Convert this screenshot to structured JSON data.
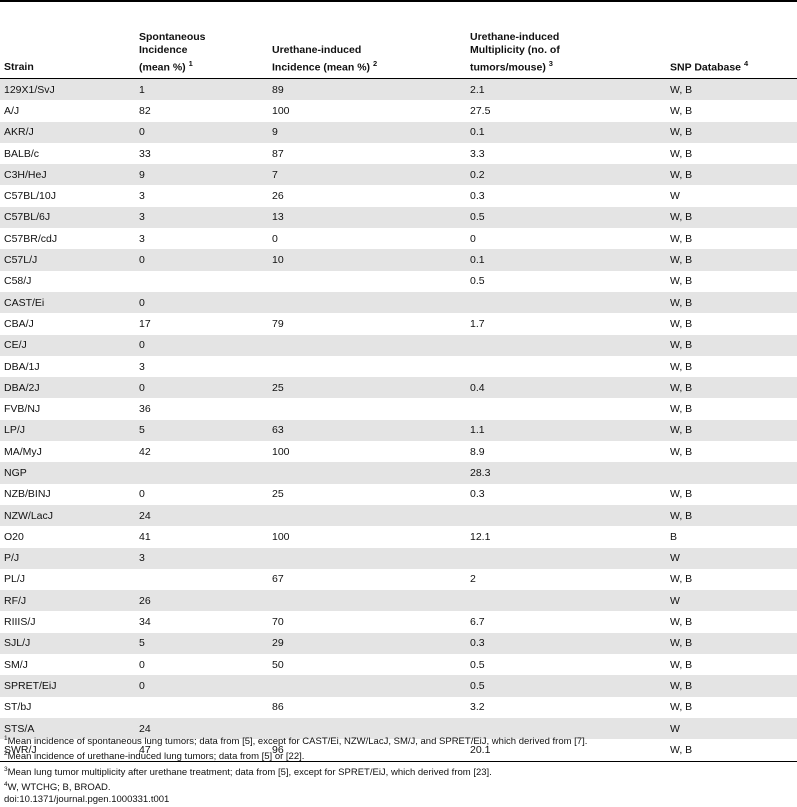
{
  "headers": [
    {
      "lines": [
        "Strain"
      ],
      "sup": ""
    },
    {
      "lines": [
        "Spontaneous",
        "Incidence",
        "(mean %)"
      ],
      "sup": "1"
    },
    {
      "lines": [
        "Urethane-induced",
        "Incidence (mean %)"
      ],
      "sup": "2"
    },
    {
      "lines": [
        "Urethane-induced",
        "Multiplicity (no. of",
        "tumors/mouse)"
      ],
      "sup": "3"
    },
    {
      "lines": [
        "SNP Database"
      ],
      "sup": "4"
    }
  ],
  "rows": [
    [
      "129X1/SvJ",
      "1",
      "89",
      "2.1",
      "W, B"
    ],
    [
      "A/J",
      "82",
      "100",
      "27.5",
      "W, B"
    ],
    [
      "AKR/J",
      "0",
      "9",
      "0.1",
      "W, B"
    ],
    [
      "BALB/c",
      "33",
      "87",
      "3.3",
      "W, B"
    ],
    [
      "C3H/HeJ",
      "9",
      "7",
      "0.2",
      "W, B"
    ],
    [
      "C57BL/10J",
      "3",
      "26",
      "0.3",
      "W"
    ],
    [
      "C57BL/6J",
      "3",
      "13",
      "0.5",
      "W, B"
    ],
    [
      "C57BR/cdJ",
      "3",
      "0",
      "0",
      "W, B"
    ],
    [
      "C57L/J",
      "0",
      "10",
      "0.1",
      "W, B"
    ],
    [
      "C58/J",
      "",
      "",
      "0.5",
      "W, B"
    ],
    [
      "CAST/Ei",
      "0",
      "",
      "",
      "W, B"
    ],
    [
      "CBA/J",
      "17",
      "79",
      "1.7",
      "W, B"
    ],
    [
      "CE/J",
      "0",
      "",
      "",
      "W, B"
    ],
    [
      "DBA/1J",
      "3",
      "",
      "",
      "W, B"
    ],
    [
      "DBA/2J",
      "0",
      "25",
      "0.4",
      "W, B"
    ],
    [
      "FVB/NJ",
      "36",
      "",
      "",
      "W, B"
    ],
    [
      "LP/J",
      "5",
      "63",
      "1.1",
      "W, B"
    ],
    [
      "MA/MyJ",
      "42",
      "100",
      "8.9",
      "W, B"
    ],
    [
      "NGP",
      "",
      "",
      "28.3",
      ""
    ],
    [
      "NZB/BINJ",
      "0",
      "25",
      "0.3",
      "W, B"
    ],
    [
      "NZW/LacJ",
      "24",
      "",
      "",
      "W, B"
    ],
    [
      "O20",
      "41",
      "100",
      "12.1",
      "B"
    ],
    [
      "P/J",
      "3",
      "",
      "",
      "W"
    ],
    [
      "PL/J",
      "",
      "67",
      "2",
      "W, B"
    ],
    [
      "RF/J",
      "26",
      "",
      "",
      "W"
    ],
    [
      "RIIIS/J",
      "34",
      "70",
      "6.7",
      "W, B"
    ],
    [
      "SJL/J",
      "5",
      "29",
      "0.3",
      "W, B"
    ],
    [
      "SM/J",
      "0",
      "50",
      "0.5",
      "W, B"
    ],
    [
      "SPRET/EiJ",
      "0",
      "",
      "0.5",
      "W, B"
    ],
    [
      "ST/bJ",
      "",
      "86",
      "3.2",
      "W, B"
    ],
    [
      "STS/A",
      "24",
      "",
      "",
      "W"
    ],
    [
      "SWR/J",
      "47",
      "96",
      "20.1",
      "W, B"
    ]
  ],
  "footnotes": [
    {
      "sup": "1",
      "text": "Mean incidence of spontaneous lung tumors; data from [5], except for CAST/Ei, NZW/LacJ, SM/J, and SPRET/EiJ, which derived from [7]."
    },
    {
      "sup": "2",
      "text": "Mean incidence of urethane-induced lung tumors; data from [5] or [22]."
    },
    {
      "sup": "3",
      "text": "Mean lung tumor multiplicity after urethane treatment; data from [5], except for SPRET/EiJ, which derived from [23]."
    },
    {
      "sup": "4",
      "text": "W, WTCHG; B, BROAD."
    }
  ],
  "doi": "doi:10.1371/journal.pgen.1000331.t001"
}
